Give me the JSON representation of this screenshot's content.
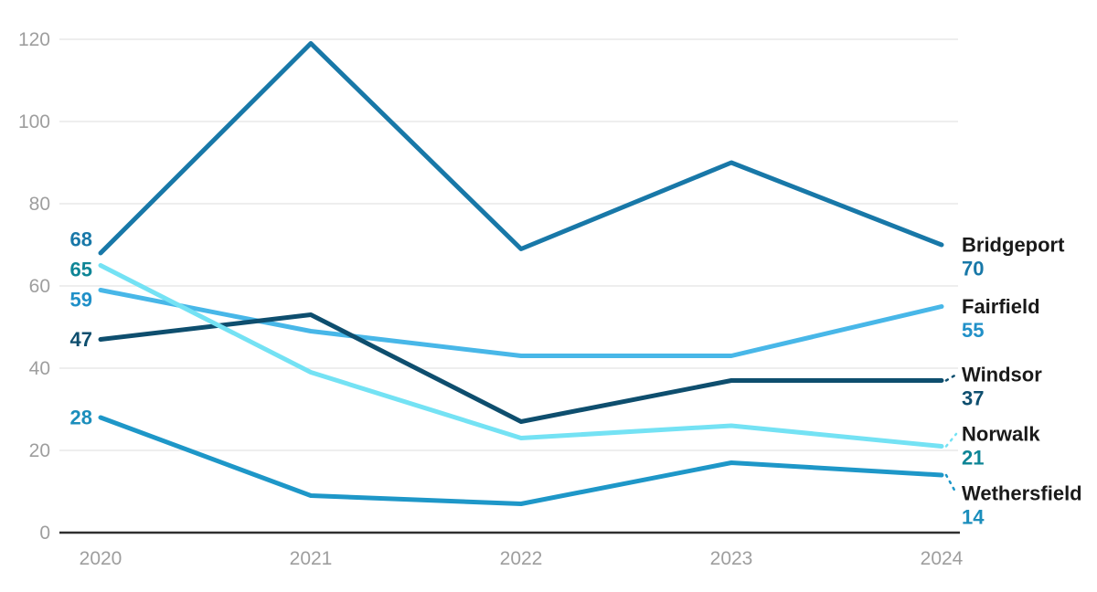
{
  "chart_data": {
    "type": "line",
    "x": [
      "2020",
      "2021",
      "2022",
      "2023",
      "2024"
    ],
    "series": [
      {
        "name": "Bridgeport",
        "values": [
          68,
          119,
          69,
          90,
          70
        ],
        "color": "#1878a8",
        "label_color": "#1878a8",
        "start_label": "68",
        "end_label": "70"
      },
      {
        "name": "Fairfield",
        "values": [
          59,
          49,
          43,
          43,
          55
        ],
        "color": "#48b7e8",
        "label_color": "#2090c8",
        "start_label": "59",
        "end_label": "55"
      },
      {
        "name": "Windsor",
        "values": [
          47,
          53,
          27,
          37,
          37
        ],
        "color": "#0e4e6e",
        "label_color": "#0e4e6e",
        "start_label": "47",
        "end_label": "37"
      },
      {
        "name": "Norwalk",
        "values": [
          65,
          39,
          23,
          26,
          21
        ],
        "color": "#74e2f4",
        "label_color": "#0e8596",
        "start_label": "65",
        "end_label": "21"
      },
      {
        "name": "Wethersfield",
        "values": [
          28,
          9,
          7,
          17,
          14
        ],
        "color": "#1e97c8",
        "label_color": "#1b8ebc",
        "start_label": "28",
        "end_label": "14"
      }
    ],
    "title": "",
    "xlabel": "",
    "ylabel": "",
    "ylim": [
      0,
      120
    ],
    "y_ticks": [
      0,
      20,
      40,
      60,
      80,
      100,
      120
    ],
    "grid": "horizontal",
    "legend_position": "right-of-line-ends",
    "start_labels_shown": true,
    "end_labels_shown": true
  },
  "colors": {
    "background": "#ffffff",
    "grid": "#e8e8e8",
    "axis": "#2f2f2f",
    "tick_text": "#9e9e9e",
    "series_name_text": "#1a1a1a"
  }
}
